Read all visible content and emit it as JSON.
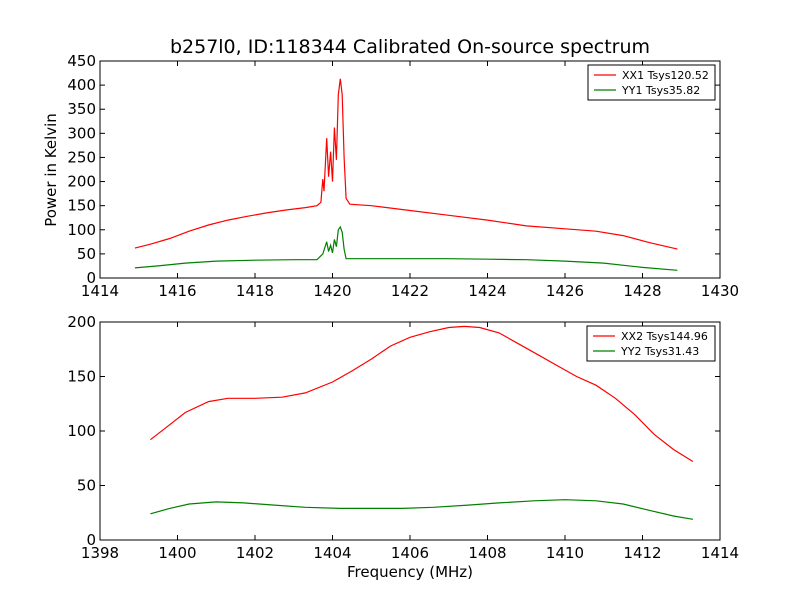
{
  "chart_data": [
    {
      "type": "line",
      "title": "b257l0, ID:118344 Calibrated On-source spectrum",
      "xlabel": "",
      "ylabel": "Power in Kelvin",
      "xlim": [
        1414,
        1430
      ],
      "ylim": [
        0,
        450
      ],
      "xticks": [
        "1414",
        "1416",
        "1418",
        "1420",
        "1422",
        "1424",
        "1426",
        "1428",
        "1430"
      ],
      "yticks": [
        "0",
        "50",
        "100",
        "150",
        "200",
        "250",
        "300",
        "350",
        "400",
        "450"
      ],
      "legend_position": "top-right",
      "grid": false,
      "series": [
        {
          "name": "XX1 Tsys120.52",
          "color": "#ff0000",
          "points": [
            [
              1414.9,
              62
            ],
            [
              1415.3,
              70
            ],
            [
              1415.8,
              82
            ],
            [
              1416.3,
              97
            ],
            [
              1416.8,
              110
            ],
            [
              1417.3,
              120
            ],
            [
              1417.8,
              128
            ],
            [
              1418.3,
              135
            ],
            [
              1418.8,
              141
            ],
            [
              1419.3,
              146
            ],
            [
              1419.6,
              150
            ],
            [
              1419.7,
              157
            ],
            [
              1419.75,
              205
            ],
            [
              1419.78,
              180
            ],
            [
              1419.85,
              290
            ],
            [
              1419.9,
              210
            ],
            [
              1419.95,
              262
            ],
            [
              1420.0,
              200
            ],
            [
              1420.05,
              312
            ],
            [
              1420.1,
              245
            ],
            [
              1420.15,
              380
            ],
            [
              1420.2,
              413
            ],
            [
              1420.25,
              380
            ],
            [
              1420.3,
              250
            ],
            [
              1420.35,
              165
            ],
            [
              1420.45,
              153
            ],
            [
              1421.0,
              150
            ],
            [
              1422.0,
              140
            ],
            [
              1423.0,
              130
            ],
            [
              1424.0,
              120
            ],
            [
              1425.0,
              108
            ],
            [
              1426.0,
              102
            ],
            [
              1426.8,
              97
            ],
            [
              1427.5,
              88
            ],
            [
              1428.2,
              73
            ],
            [
              1428.9,
              60
            ]
          ]
        },
        {
          "name": "YY1 Tsys35.82",
          "color": "#008000",
          "points": [
            [
              1414.9,
              21
            ],
            [
              1415.5,
              25
            ],
            [
              1416.2,
              31
            ],
            [
              1417.0,
              35
            ],
            [
              1418.0,
              37
            ],
            [
              1419.0,
              38
            ],
            [
              1419.6,
              38
            ],
            [
              1419.75,
              50
            ],
            [
              1419.85,
              75
            ],
            [
              1419.9,
              55
            ],
            [
              1419.95,
              68
            ],
            [
              1420.0,
              52
            ],
            [
              1420.05,
              80
            ],
            [
              1420.1,
              65
            ],
            [
              1420.15,
              100
            ],
            [
              1420.2,
              106
            ],
            [
              1420.25,
              95
            ],
            [
              1420.3,
              60
            ],
            [
              1420.35,
              40
            ],
            [
              1421.0,
              40
            ],
            [
              1422.0,
              40
            ],
            [
              1423.0,
              40
            ],
            [
              1424.0,
              39
            ],
            [
              1425.0,
              38
            ],
            [
              1426.0,
              35
            ],
            [
              1427.0,
              31
            ],
            [
              1428.0,
              22
            ],
            [
              1428.9,
              16
            ]
          ]
        }
      ]
    },
    {
      "type": "line",
      "title": "",
      "xlabel": "Frequency (MHz)",
      "ylabel": "",
      "xlim": [
        1398,
        1414
      ],
      "ylim": [
        0,
        200
      ],
      "xticks": [
        "1398",
        "1400",
        "1402",
        "1404",
        "1406",
        "1408",
        "1410",
        "1412",
        "1414"
      ],
      "yticks": [
        "0",
        "50",
        "100",
        "150",
        "200"
      ],
      "legend_position": "top-right",
      "grid": false,
      "series": [
        {
          "name": "XX2 Tsys144.96",
          "color": "#ff0000",
          "points": [
            [
              1399.3,
              92
            ],
            [
              1399.7,
              103
            ],
            [
              1400.2,
              117
            ],
            [
              1400.8,
              127
            ],
            [
              1401.3,
              130
            ],
            [
              1402.0,
              130
            ],
            [
              1402.7,
              131
            ],
            [
              1403.3,
              135
            ],
            [
              1404.0,
              145
            ],
            [
              1404.5,
              155
            ],
            [
              1405.0,
              166
            ],
            [
              1405.5,
              178
            ],
            [
              1406.0,
              186
            ],
            [
              1406.5,
              191
            ],
            [
              1407.0,
              195
            ],
            [
              1407.4,
              196
            ],
            [
              1407.8,
              195
            ],
            [
              1408.3,
              190
            ],
            [
              1408.8,
              180
            ],
            [
              1409.3,
              170
            ],
            [
              1409.8,
              160
            ],
            [
              1410.3,
              150
            ],
            [
              1410.8,
              142
            ],
            [
              1411.3,
              130
            ],
            [
              1411.8,
              115
            ],
            [
              1412.3,
              97
            ],
            [
              1412.8,
              83
            ],
            [
              1413.3,
              72
            ]
          ]
        },
        {
          "name": "YY2 Tsys31.43",
          "color": "#008000",
          "points": [
            [
              1399.3,
              24
            ],
            [
              1399.8,
              29
            ],
            [
              1400.3,
              33
            ],
            [
              1401.0,
              35
            ],
            [
              1401.7,
              34
            ],
            [
              1402.5,
              32
            ],
            [
              1403.3,
              30
            ],
            [
              1404.2,
              29
            ],
            [
              1405.0,
              29
            ],
            [
              1405.8,
              29
            ],
            [
              1406.6,
              30
            ],
            [
              1407.5,
              32
            ],
            [
              1408.3,
              34
            ],
            [
              1409.2,
              36
            ],
            [
              1410.0,
              37
            ],
            [
              1410.8,
              36
            ],
            [
              1411.5,
              33
            ],
            [
              1412.2,
              27
            ],
            [
              1412.8,
              22
            ],
            [
              1413.3,
              19
            ]
          ]
        }
      ]
    }
  ]
}
